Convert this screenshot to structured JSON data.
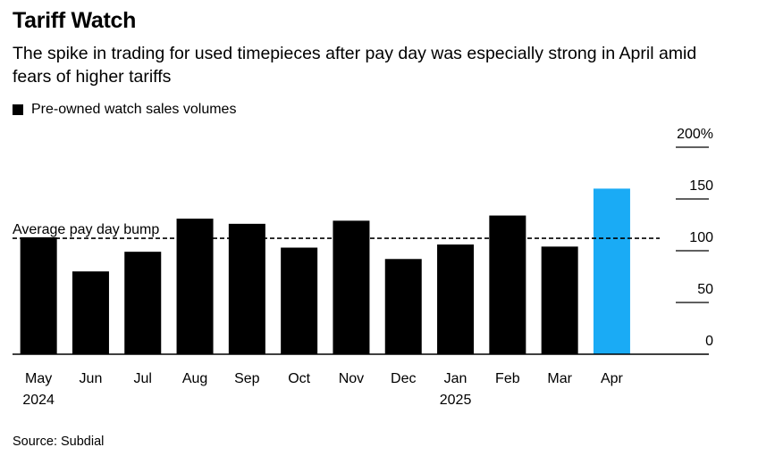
{
  "title": "Tariff Watch",
  "subtitle": "The spike in trading for used timepieces after pay day was especially strong in April amid fears of higher tariffs",
  "legend": {
    "label": "Pre-owned watch sales volumes"
  },
  "source": "Source: Subdial",
  "colors": {
    "default": "#000000",
    "highlight": "#1aabf5"
  },
  "chart_data": {
    "type": "bar",
    "categories": [
      "May",
      "Jun",
      "Jul",
      "Aug",
      "Sep",
      "Oct",
      "Nov",
      "Dec",
      "Jan",
      "Feb",
      "Mar",
      "Apr"
    ],
    "year_labels": [
      "2024",
      "",
      "",
      "",
      "",
      "",
      "",
      "",
      "2025",
      "",
      "",
      ""
    ],
    "series": [
      {
        "name": "Pre-owned watch sales volumes",
        "values": [
          113,
          80,
          99,
          131,
          126,
          103,
          129,
          92,
          106,
          134,
          104,
          160
        ]
      }
    ],
    "highlight_index": 11,
    "reference_line": {
      "value": 112,
      "label": "Average pay day bump"
    },
    "y_ticks": [
      0,
      50,
      100,
      150,
      200
    ],
    "y_tick_labels": [
      "0",
      "50",
      "100",
      "150",
      "200%"
    ],
    "ylim": [
      0,
      200
    ],
    "ylabel": "",
    "xlabel": ""
  }
}
